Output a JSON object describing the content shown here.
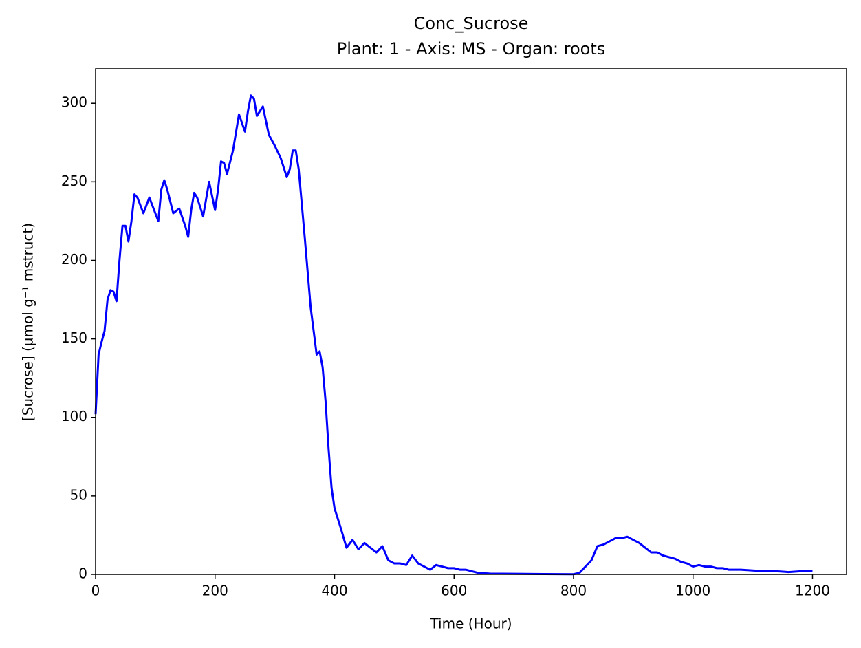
{
  "chart_data": {
    "type": "line",
    "title": "Conc_Sucrose",
    "subtitle": "Plant: 1 - Axis: MS - Organ: roots",
    "x_label": "Time (Hour)",
    "y_label": "[Sucrose] (µmol g⁻¹ mstruct)",
    "x": [
      0,
      5,
      10,
      15,
      20,
      25,
      30,
      35,
      40,
      45,
      50,
      55,
      60,
      65,
      70,
      80,
      90,
      100,
      105,
      110,
      115,
      120,
      130,
      140,
      150,
      155,
      160,
      165,
      170,
      180,
      190,
      200,
      205,
      210,
      215,
      220,
      230,
      240,
      250,
      255,
      260,
      265,
      270,
      280,
      290,
      300,
      310,
      320,
      325,
      330,
      335,
      340,
      350,
      360,
      370,
      375,
      380,
      385,
      390,
      395,
      400,
      410,
      420,
      430,
      440,
      450,
      460,
      470,
      480,
      490,
      500,
      510,
      520,
      530,
      540,
      550,
      560,
      570,
      580,
      590,
      600,
      610,
      620,
      630,
      640,
      660,
      700,
      750,
      800,
      810,
      820,
      830,
      840,
      850,
      860,
      870,
      880,
      890,
      900,
      910,
      920,
      930,
      940,
      950,
      960,
      970,
      980,
      990,
      1000,
      1010,
      1020,
      1030,
      1040,
      1050,
      1060,
      1080,
      1100,
      1120,
      1140,
      1160,
      1180,
      1200
    ],
    "series": [
      {
        "name": "Conc_Sucrose",
        "color": "#0000ff",
        "values": [
          102,
          140,
          148,
          155,
          175,
          181,
          180,
          174,
          200,
          222,
          222,
          212,
          225,
          242,
          240,
          230,
          240,
          230,
          225,
          245,
          251,
          245,
          230,
          233,
          222,
          215,
          232,
          243,
          240,
          228,
          250,
          232,
          245,
          263,
          262,
          255,
          270,
          293,
          282,
          295,
          305,
          303,
          292,
          298,
          280,
          273,
          265,
          253,
          258,
          270,
          270,
          258,
          215,
          170,
          140,
          142,
          132,
          110,
          80,
          55,
          42,
          30,
          17,
          22,
          16,
          20,
          17,
          14,
          18,
          9,
          7,
          7,
          6,
          12,
          7,
          5,
          3,
          6,
          5,
          4,
          4,
          3,
          3,
          2,
          1,
          0.5,
          0.4,
          0.2,
          0.1,
          1,
          5,
          9,
          18,
          19,
          21,
          23,
          23,
          24,
          22,
          20,
          17,
          14,
          14,
          12,
          11,
          10,
          8,
          7,
          5,
          6,
          5,
          5,
          4,
          4,
          3,
          3,
          2.5,
          2,
          2,
          1.5,
          2,
          2
        ]
      }
    ],
    "xlim": [
      0,
      1257
    ],
    "xticks": [
      0,
      200,
      400,
      600,
      800,
      1000,
      1200
    ],
    "ylim": [
      0,
      322
    ],
    "yticks": [
      0,
      50,
      100,
      150,
      200,
      250,
      300
    ],
    "grid": false
  }
}
